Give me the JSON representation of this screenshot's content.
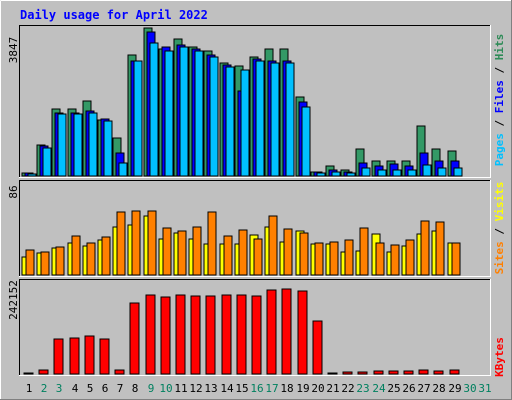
{
  "chart_data": {
    "type": "bar",
    "title": "Daily usage for April 2022",
    "categories": [
      "1",
      "2",
      "3",
      "4",
      "5",
      "6",
      "7",
      "8",
      "9",
      "10",
      "11",
      "12",
      "13",
      "14",
      "15",
      "16",
      "17",
      "18",
      "19",
      "20",
      "21",
      "22",
      "23",
      "24",
      "25",
      "26",
      "27",
      "28",
      "29",
      "30",
      "31"
    ],
    "weekend_days": [
      "2",
      "3",
      "9",
      "10",
      "16",
      "17",
      "23",
      "24",
      "30",
      "31"
    ],
    "panels": [
      {
        "id": "top",
        "ymax_label": "3847",
        "ymax": 3847,
        "legend": [
          {
            "text": "Pages",
            "color": "#00C0FF"
          },
          {
            "text": " / ",
            "color": "#000000"
          },
          {
            "text": "Files",
            "color": "#0000FF"
          },
          {
            "text": " / ",
            "color": "#000000"
          },
          {
            "text": "Hits",
            "color": "#2E8B57"
          }
        ],
        "series": [
          {
            "name": "Hits",
            "color": "#339966",
            "values": [
              90,
              800,
              1750,
              1750,
              1950,
              1450,
              1000,
              3150,
              3847,
              3300,
              3550,
              3350,
              3250,
              2950,
              2850,
              3100,
              3300,
              3300,
              2050,
              110,
              250,
              150,
              700,
              400,
              400,
              400,
              1300,
              700,
              650,
              0,
              0
            ]
          },
          {
            "name": "Files",
            "color": "#0000FF",
            "values": [
              80,
              780,
              1630,
              1630,
              1700,
              1480,
              600,
              3000,
              3750,
              3350,
              3400,
              3300,
              3150,
              2880,
              2200,
              3050,
              3000,
              3000,
              1930,
              110,
              150,
              110,
              350,
              250,
              300,
              250,
              600,
              400,
              380,
              0,
              0
            ]
          },
          {
            "name": "Pages",
            "color": "#00C0FF",
            "values": [
              50,
              730,
              1600,
              1600,
              1630,
              1430,
              350,
              3000,
              3450,
              3250,
              3350,
              3250,
              3100,
              2830,
              2750,
              3000,
              2950,
              2950,
              1800,
              80,
              100,
              80,
              200,
              150,
              150,
              150,
              280,
              200,
              200,
              0,
              0
            ]
          }
        ]
      },
      {
        "id": "middle",
        "ymax_label": "86",
        "ymax": 86,
        "legend": [
          {
            "text": "Sites",
            "color": "#FF8000"
          },
          {
            "text": " / ",
            "color": "#000000"
          },
          {
            "text": "Visits",
            "color": "#FFFF00"
          }
        ],
        "series": [
          {
            "name": "Visits",
            "color": "#FFFF00",
            "values": [
              17,
              21,
              26,
              31,
              28,
              33,
              46,
              48,
              56,
              34,
              40,
              34,
              30,
              30,
              30,
              38,
              46,
              32,
              42,
              30,
              30,
              22,
              23,
              39,
              22,
              28,
              39,
              42,
              31,
              0,
              0
            ]
          },
          {
            "name": "Sites",
            "color": "#FF8000",
            "values": [
              24,
              22,
              27,
              37,
              31,
              36,
              60,
              61,
              61,
              45,
              42,
              46,
              60,
              37,
              43,
              34,
              56,
              44,
              40,
              31,
              32,
              33,
              45,
              31,
              29,
              33,
              52,
              51,
              31,
              0,
              0
            ]
          }
        ]
      },
      {
        "id": "bottom",
        "ymax_label": "242152",
        "ymax": 242152,
        "legend": [
          {
            "text": "KBytes",
            "color": "#FF0000"
          }
        ],
        "series": [
          {
            "name": "KBytes",
            "color": "#FF0000",
            "values": [
              3000,
              12000,
              95000,
              96000,
              103000,
              93000,
              10000,
              190000,
              212000,
              206000,
              212000,
              209000,
              209000,
              213000,
              213000,
              209000,
              226000,
              228000,
              224000,
              143000,
              3000,
              5000,
              5000,
              7000,
              7000,
              7000,
              12000,
              7000,
              10000,
              0,
              0
            ]
          }
        ]
      }
    ]
  }
}
